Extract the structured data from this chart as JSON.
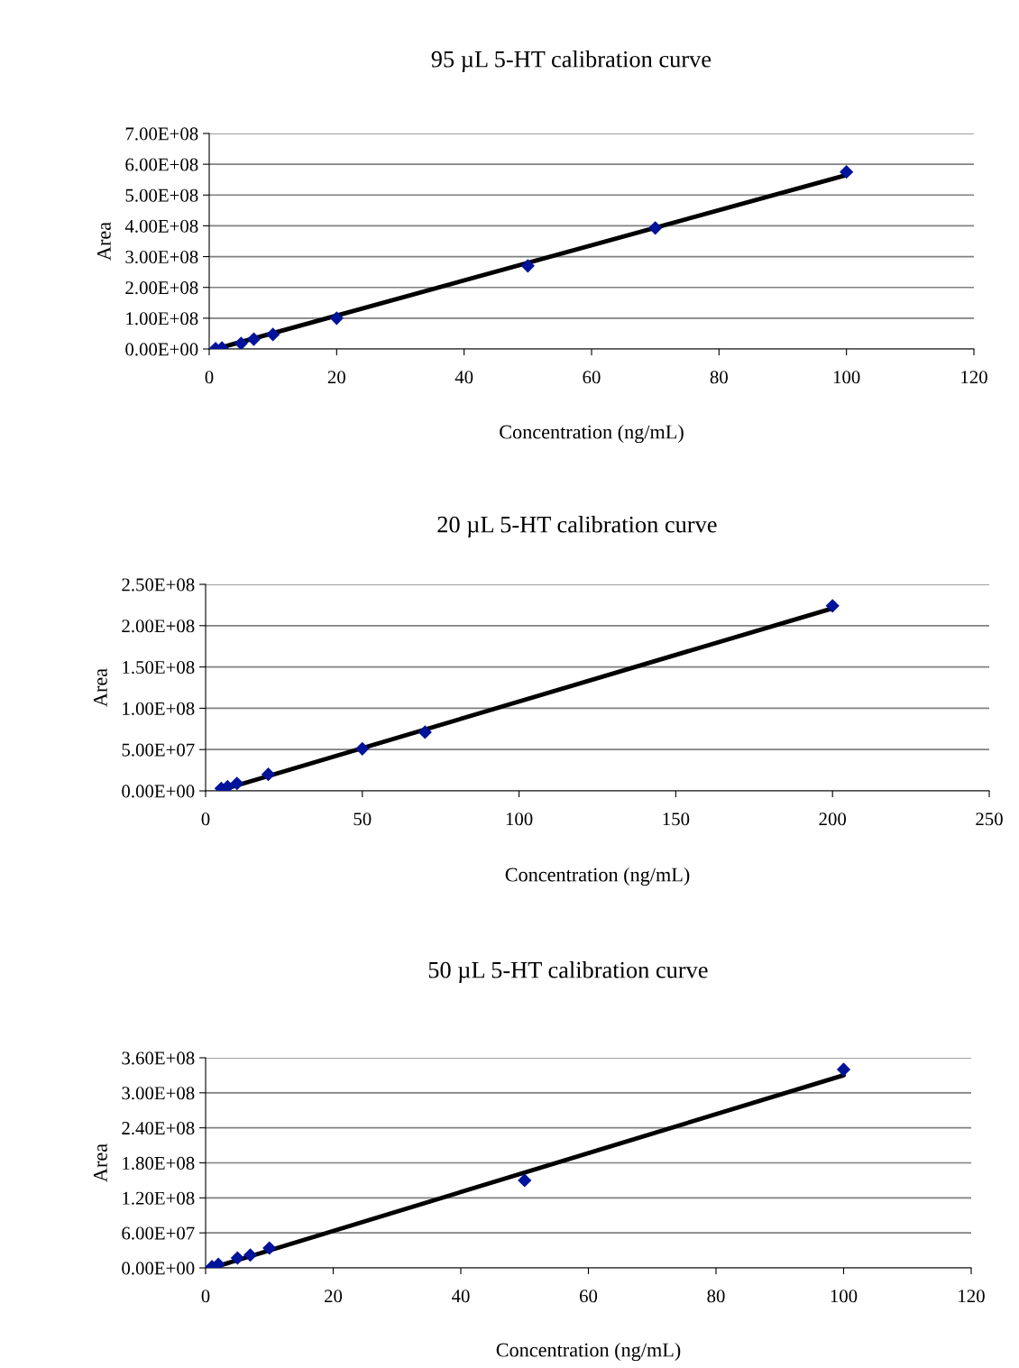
{
  "chart_data": [
    {
      "type": "scatter",
      "title": "95 µL 5-HT calibration curve",
      "xlabel": "Concentration (ng/mL)",
      "ylabel": "Area",
      "marker": "diamond",
      "grid": "y",
      "xlim": [
        0,
        120
      ],
      "xticks": [
        0,
        20,
        40,
        60,
        80,
        100,
        120
      ],
      "ylim": [
        0,
        700000000
      ],
      "yticks": [
        {
          "value": 0,
          "label": "0.00E+00"
        },
        {
          "value": 100000000,
          "label": "1.00E+08"
        },
        {
          "value": 200000000,
          "label": "2.00E+08"
        },
        {
          "value": 300000000,
          "label": "3.00E+08"
        },
        {
          "value": 400000000,
          "label": "4.00E+08"
        },
        {
          "value": 500000000,
          "label": "5.00E+08"
        },
        {
          "value": 600000000,
          "label": "6.00E+08"
        },
        {
          "value": 700000000,
          "label": "7.00E+08"
        }
      ],
      "series": [
        {
          "color": "#00139a",
          "x": [
            1,
            2,
            5,
            7,
            10,
            20,
            50,
            70,
            100
          ],
          "values": [
            1000000,
            3000000,
            18000000,
            32000000,
            47000000,
            100000000,
            270000000,
            393000000,
            575000000
          ]
        },
        {
          "type": "line",
          "marker": "none",
          "color": "#000000",
          "x": [
            1,
            100
          ],
          "values": [
            0,
            565000000
          ]
        }
      ]
    },
    {
      "type": "scatter",
      "title": "20 µL 5-HT calibration curve",
      "xlabel": "Concentration (ng/mL)",
      "ylabel": "Area",
      "marker": "diamond",
      "grid": "y",
      "xlim": [
        0,
        250
      ],
      "xticks": [
        0,
        50,
        100,
        150,
        200,
        250
      ],
      "ylim": [
        0,
        250000000
      ],
      "yticks": [
        {
          "value": 0,
          "label": "0.00E+00"
        },
        {
          "value": 50000000,
          "label": "5.00E+07"
        },
        {
          "value": 100000000,
          "label": "1.00E+08"
        },
        {
          "value": 150000000,
          "label": "1.50E+08"
        },
        {
          "value": 200000000,
          "label": "2.00E+08"
        },
        {
          "value": 250000000,
          "label": "2.50E+08"
        }
      ],
      "series": [
        {
          "color": "#00139a",
          "x": [
            5,
            7,
            10,
            20,
            50,
            70,
            200
          ],
          "values": [
            3000000,
            5000000,
            9000000,
            20000000,
            51000000,
            71000000,
            224000000
          ]
        },
        {
          "type": "line",
          "marker": "none",
          "color": "#000000",
          "x": [
            5,
            200
          ],
          "values": [
            1000000,
            221000000
          ]
        }
      ]
    },
    {
      "type": "scatter",
      "title": "50 µL 5-HT calibration curve",
      "xlabel": "Concentration (ng/mL)",
      "ylabel": "Area",
      "marker": "diamond",
      "grid": "y",
      "xlim": [
        0,
        120
      ],
      "xticks": [
        0,
        20,
        40,
        60,
        80,
        100,
        120
      ],
      "ylim": [
        0,
        360000000
      ],
      "yticks": [
        {
          "value": 0,
          "label": "0.00E+00"
        },
        {
          "value": 60000000,
          "label": "6.00E+07"
        },
        {
          "value": 120000000,
          "label": "1.20E+08"
        },
        {
          "value": 180000000,
          "label": "1.80E+08"
        },
        {
          "value": 240000000,
          "label": "2.40E+08"
        },
        {
          "value": 300000000,
          "label": "3.00E+08"
        },
        {
          "value": 360000000,
          "label": "3.60E+08"
        }
      ],
      "series": [
        {
          "color": "#00139a",
          "x": [
            1,
            2,
            5,
            7,
            10,
            50,
            100
          ],
          "values": [
            2000000,
            6000000,
            17000000,
            22000000,
            34000000,
            150000000,
            340000000
          ]
        },
        {
          "type": "line",
          "marker": "none",
          "color": "#000000",
          "x": [
            1,
            100
          ],
          "values": [
            0,
            330000000
          ]
        }
      ]
    }
  ]
}
